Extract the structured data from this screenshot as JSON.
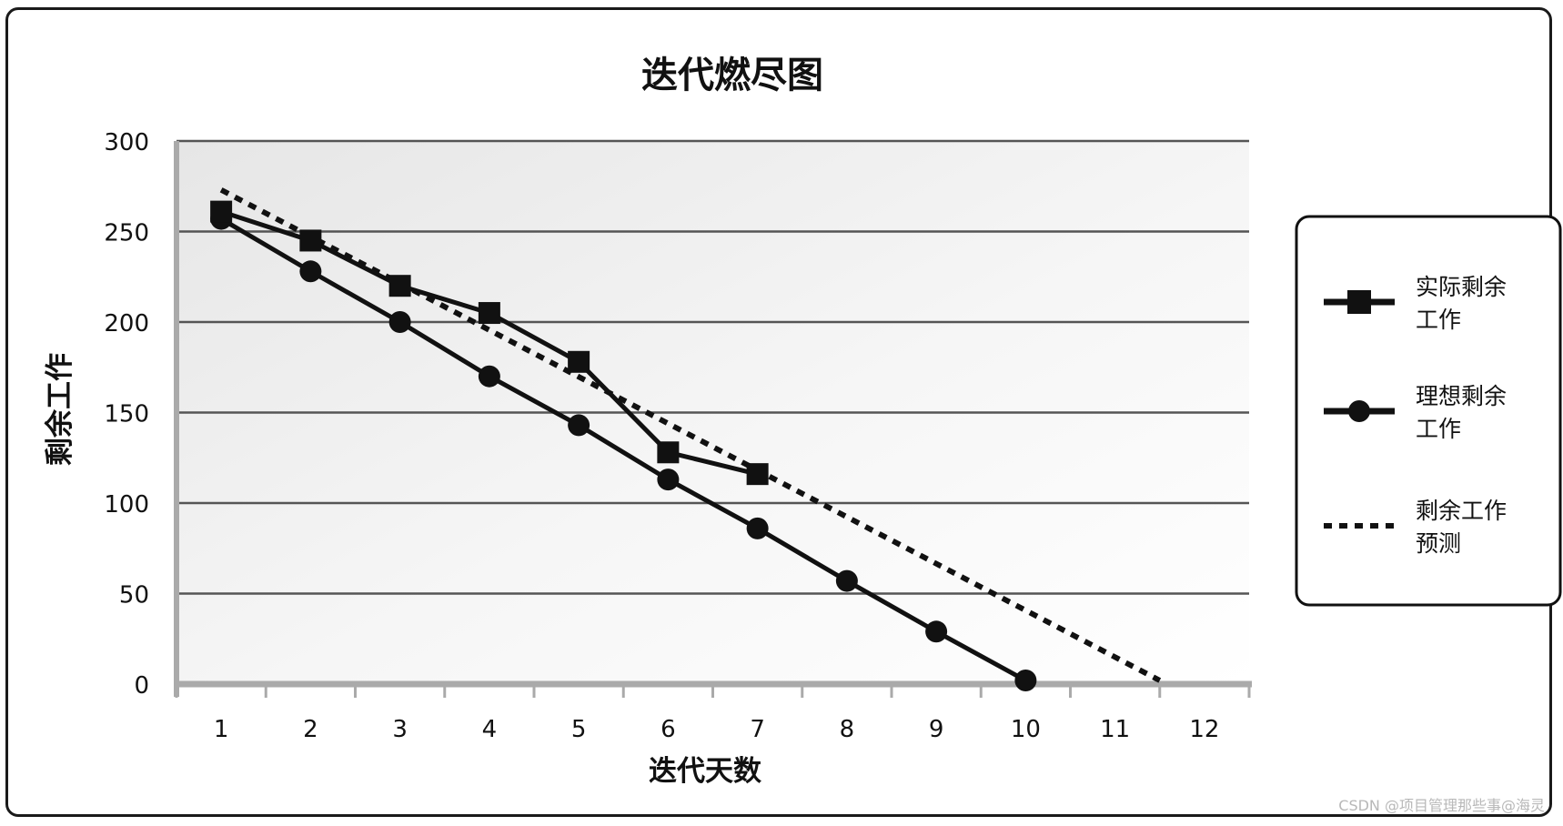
{
  "chart_data": {
    "type": "line",
    "title": "迭代燃尽图",
    "xlabel": "迭代天数",
    "ylabel": "剩余工作",
    "x": [
      1,
      2,
      3,
      4,
      5,
      6,
      7,
      8,
      9,
      10,
      11,
      12
    ],
    "xlim": [
      0.5,
      12.5
    ],
    "ylim": [
      0,
      300
    ],
    "yticks": [
      0,
      50,
      100,
      150,
      200,
      250,
      300
    ],
    "grid": true,
    "legend_position": "right",
    "series": [
      {
        "name": "实际剩余工作",
        "name_lines": [
          "实际剩余",
          "工作"
        ],
        "style": "solid-square",
        "x": [
          1,
          2,
          3,
          4,
          5,
          6,
          7
        ],
        "values": [
          261,
          245,
          220,
          205,
          178,
          128,
          116
        ]
      },
      {
        "name": "理想剩余工作",
        "name_lines": [
          "理想剩余",
          "工作"
        ],
        "style": "solid-circle",
        "x": [
          1,
          2,
          3,
          4,
          5,
          6,
          7,
          8,
          9,
          10
        ],
        "values": [
          257,
          228,
          200,
          170,
          143,
          113,
          86,
          57,
          29,
          2
        ]
      },
      {
        "name": "剩余工作预测",
        "name_lines": [
          "剩余工作",
          "预测"
        ],
        "style": "dashed",
        "x": [
          1,
          11.5
        ],
        "values": [
          273,
          2
        ]
      }
    ],
    "colors": {
      "line": "#111111",
      "grid": "#555555",
      "axis": "#aaaaaa",
      "plot_bg": "#f0f0f0"
    }
  },
  "watermark": "CSDN @项目管理那些事@海灵"
}
